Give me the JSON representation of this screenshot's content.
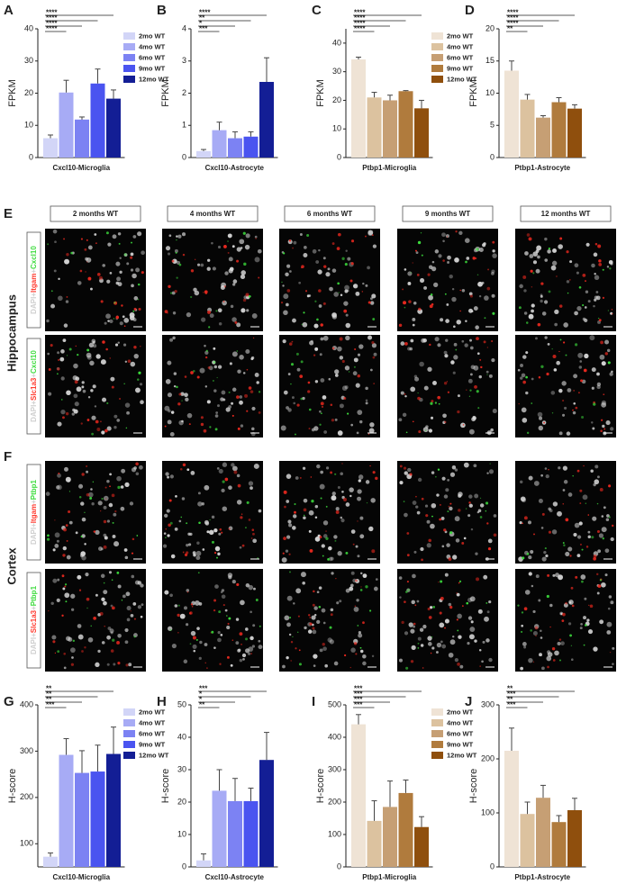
{
  "chart_data": [
    {
      "type": "bar",
      "panel": "A",
      "ylabel": "FPKM",
      "xlabel": "Cxcl10-Microglia",
      "categories": [
        "2mo WT",
        "4mo WT",
        "6mo WT",
        "9mo WT",
        "12mo WT"
      ],
      "values": [
        6,
        20.2,
        11.8,
        23,
        18.3
      ],
      "errors": [
        1,
        3.8,
        0.8,
        4.5,
        2.7
      ],
      "colors": [
        "#d2d5f7",
        "#a7abf5",
        "#7c82f3",
        "#4a54f0",
        "#131e95"
      ],
      "ylim": [
        0,
        40
      ],
      "yticks": [
        0,
        10,
        20,
        30,
        40
      ],
      "legend": true,
      "significance": [
        "****",
        "****",
        "****",
        "****"
      ]
    },
    {
      "type": "bar",
      "panel": "B",
      "ylabel": "FPKM",
      "xlabel": "Cxcl10-Astrocyte",
      "categories": [
        "2mo WT",
        "4mo WT",
        "6mo WT",
        "9mo WT",
        "12mo WT"
      ],
      "values": [
        0.2,
        0.85,
        0.6,
        0.65,
        2.35
      ],
      "errors": [
        0.05,
        0.25,
        0.2,
        0.15,
        0.75
      ],
      "colors": [
        "#d2d5f7",
        "#a7abf5",
        "#7c82f3",
        "#4a54f0",
        "#131e95"
      ],
      "ylim": [
        0,
        4
      ],
      "yticks": [
        0,
        1,
        2,
        3,
        4
      ],
      "legend": false,
      "significance": [
        "***",
        "*",
        "**",
        "****"
      ]
    },
    {
      "type": "bar",
      "panel": "C",
      "ylabel": "FPKM",
      "xlabel": "Ptbp1-Microglia",
      "categories": [
        "2mo WT",
        "4mo WT",
        "6mo WT",
        "9mo WT",
        "12mo WT"
      ],
      "values": [
        34.3,
        21,
        20,
        23.2,
        17.2
      ],
      "errors": [
        0.8,
        1.8,
        1.8,
        0.2,
        2.8
      ],
      "colors": [
        "#efe3d5",
        "#dcc29f",
        "#c69f74",
        "#b07b3d",
        "#8f4f0d"
      ],
      "ylim": [
        0,
        45
      ],
      "yticks": [
        0,
        10,
        20,
        30,
        40
      ],
      "legend": true,
      "significance": [
        "****",
        "****",
        "****",
        "****"
      ]
    },
    {
      "type": "bar",
      "panel": "D",
      "ylabel": "FPKM",
      "xlabel": "Ptbp1-Astrocyte",
      "categories": [
        "2mo WT",
        "4mo WT",
        "6mo WT",
        "9mo WT",
        "12mo WT"
      ],
      "values": [
        13.5,
        9,
        6.2,
        8.6,
        7.6
      ],
      "errors": [
        1.5,
        0.8,
        0.3,
        0.7,
        0.6
      ],
      "colors": [
        "#efe3d5",
        "#dcc29f",
        "#c69f74",
        "#b07b3d",
        "#8f4f0d"
      ],
      "ylim": [
        0,
        20
      ],
      "yticks": [
        0,
        5,
        10,
        15,
        20
      ],
      "legend": false,
      "significance": [
        "**",
        "****",
        "****",
        "****"
      ]
    },
    {
      "type": "bar",
      "panel": "G",
      "ylabel": "H-score",
      "xlabel": "Cxcl10-Microglia",
      "categories": [
        "2mo WT",
        "4mo WT",
        "6mo WT",
        "9mo WT",
        "12mo WT"
      ],
      "values": [
        72,
        292,
        253,
        256,
        294
      ],
      "errors": [
        8,
        35,
        48,
        57,
        58
      ],
      "colors": [
        "#d2d5f7",
        "#a7abf5",
        "#7c82f3",
        "#4a54f0",
        "#131e95"
      ],
      "ylim": [
        50,
        400
      ],
      "yticks": [
        100,
        200,
        300,
        400
      ],
      "legend": true,
      "significance": [
        "***",
        "**",
        "**",
        "**"
      ]
    },
    {
      "type": "bar",
      "panel": "H",
      "ylabel": "H-score",
      "xlabel": "Cxcl10-Astrocyte",
      "categories": [
        "2mo WT",
        "4mo WT",
        "6mo WT",
        "9mo WT",
        "12mo WT"
      ],
      "values": [
        2,
        23.5,
        20.3,
        20.3,
        33
      ],
      "errors": [
        2,
        6.5,
        7,
        4,
        8.5
      ],
      "colors": [
        "#d2d5f7",
        "#a7abf5",
        "#7c82f3",
        "#4a54f0",
        "#131e95"
      ],
      "ylim": [
        0,
        50
      ],
      "yticks": [
        0,
        10,
        20,
        30,
        40,
        50
      ],
      "legend": false,
      "significance": [
        "**",
        "*",
        "*",
        "***"
      ]
    },
    {
      "type": "bar",
      "panel": "I",
      "ylabel": "H-score",
      "xlabel": "Ptbp1-Microglia",
      "categories": [
        "2mo WT",
        "4mo WT",
        "6mo WT",
        "9mo WT",
        "12mo WT"
      ],
      "values": [
        440,
        142,
        185,
        228,
        123
      ],
      "errors": [
        30,
        62,
        80,
        40,
        32
      ],
      "colors": [
        "#efe3d5",
        "#dcc29f",
        "#c69f74",
        "#b07b3d",
        "#8f4f0d"
      ],
      "ylim": [
        0,
        500
      ],
      "yticks": [
        0,
        100,
        200,
        300,
        400,
        500
      ],
      "legend": true,
      "significance": [
        "***",
        "***",
        "***",
        "***"
      ]
    },
    {
      "type": "bar",
      "panel": "J",
      "ylabel": "H-score",
      "xlabel": "Ptbp1-Astrocyte",
      "categories": [
        "2mo WT",
        "4mo WT",
        "6mo WT",
        "9mo WT",
        "12mo WT"
      ],
      "values": [
        215,
        98,
        128,
        83,
        105
      ],
      "errors": [
        42,
        22,
        23,
        12,
        22
      ],
      "colors": [
        "#efe3d5",
        "#dcc29f",
        "#c69f74",
        "#b07b3d",
        "#8f4f0d"
      ],
      "ylim": [
        0,
        300
      ],
      "yticks": [
        0,
        100,
        200,
        300
      ],
      "legend": false,
      "significance": [
        "***",
        "**",
        "***",
        "**"
      ]
    }
  ],
  "image_panels": {
    "columns": [
      "2 months WT",
      "4 months WT",
      "6 months WT",
      "9 months WT",
      "12 months WT"
    ],
    "sections": [
      {
        "letter": "E",
        "region": "Hippocampus",
        "rows": [
          {
            "stain": [
              "DAPI",
              "+",
              "Itgam",
              "+",
              "Cxcl10"
            ]
          },
          {
            "stain": [
              "DAPI",
              "+",
              "Slc1a3",
              "+",
              "Cxcl10"
            ]
          }
        ]
      },
      {
        "letter": "F",
        "region": "Cortex",
        "rows": [
          {
            "stain": [
              "DAPI",
              "+",
              "Itgam",
              "+",
              "Ptbp1"
            ]
          },
          {
            "stain": [
              "DAPI",
              "+",
              "Slc1a3",
              "+",
              "Ptbp1"
            ]
          }
        ]
      }
    ]
  }
}
